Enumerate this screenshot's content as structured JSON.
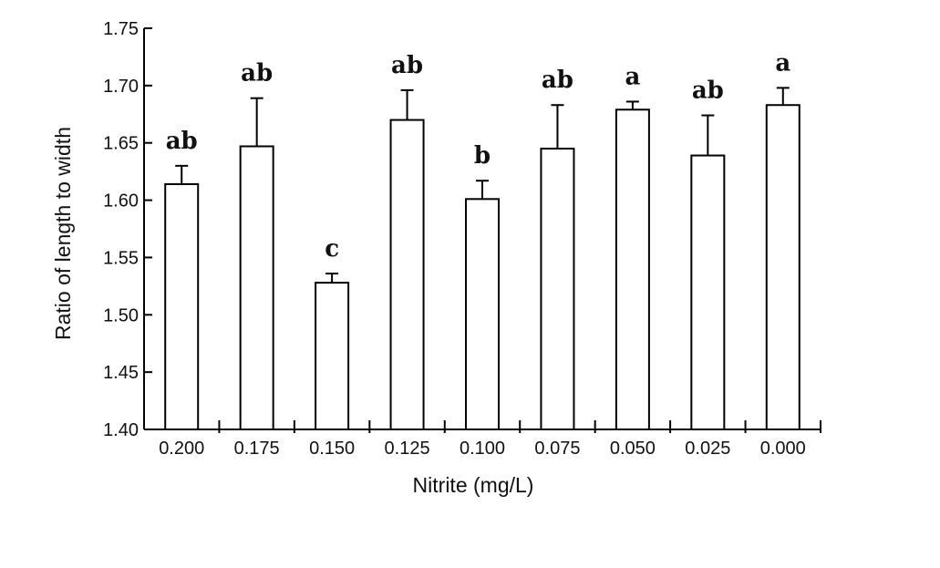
{
  "chart_data": {
    "type": "bar",
    "title": "",
    "xlabel": "Nitrite (mg/L)",
    "ylabel": "Ratio of length to width",
    "ylim": [
      1.4,
      1.75
    ],
    "yticks": [
      "1.40",
      "1.45",
      "1.50",
      "1.55",
      "1.60",
      "1.65",
      "1.70",
      "1.75"
    ],
    "categories": [
      "0.200",
      "0.175",
      "0.150",
      "0.125",
      "0.100",
      "0.075",
      "0.050",
      "0.025",
      "0.000"
    ],
    "values": [
      1.614,
      1.647,
      1.528,
      1.67,
      1.601,
      1.645,
      1.679,
      1.639,
      1.683
    ],
    "errors": [
      0.016,
      0.042,
      0.008,
      0.026,
      0.016,
      0.038,
      0.007,
      0.035,
      0.015
    ],
    "significance": [
      "ab",
      "ab",
      "c",
      "ab",
      "b",
      "ab",
      "a",
      "ab",
      "a"
    ],
    "grid": false,
    "legend": "none",
    "colors": {
      "bar_fill": "#ffffff",
      "stroke": "#000000"
    }
  }
}
